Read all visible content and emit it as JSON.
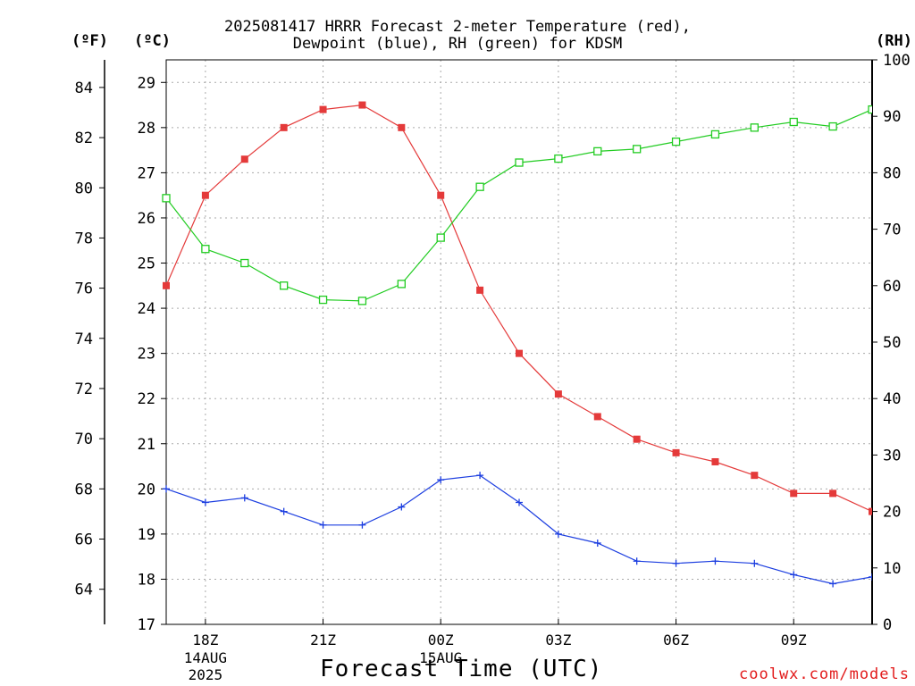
{
  "title": {
    "line1": "2025081417 HRRR Forecast 2-meter Temperature (red),",
    "line2": "Dewpoint (blue), RH (green) for KDSM"
  },
  "units": {
    "fahrenheit": "(ºF)",
    "celsius": "(ºC)",
    "rh": "(RH)"
  },
  "xlabel": "Forecast Time (UTC)",
  "credit": "coolwx.com/models",
  "chart_data": {
    "type": "line",
    "title": "2025081417 HRRR Forecast 2-meter Temperature (red), Dewpoint (blue), RH (green) for KDSM",
    "xlabel": "Forecast Time (UTC)",
    "x_hours": [
      0,
      1,
      2,
      3,
      4,
      5,
      6,
      7,
      8,
      9,
      10,
      11,
      12,
      13,
      14,
      15,
      16,
      17,
      18
    ],
    "xlim": [
      0,
      18
    ],
    "x_ticks": [
      {
        "hour": 1,
        "label": "18Z",
        "sub": [
          "14AUG",
          "2025"
        ]
      },
      {
        "hour": 4,
        "label": "21Z",
        "sub": []
      },
      {
        "hour": 7,
        "label": "00Z",
        "sub": [
          "15AUG"
        ]
      },
      {
        "hour": 10,
        "label": "03Z",
        "sub": []
      },
      {
        "hour": 13,
        "label": "06Z",
        "sub": []
      },
      {
        "hour": 16,
        "label": "09Z",
        "sub": []
      }
    ],
    "celsius_axis": {
      "ylim": [
        17,
        29.5
      ],
      "ticks": [
        17,
        18,
        19,
        20,
        21,
        22,
        23,
        24,
        25,
        26,
        27,
        28,
        29
      ]
    },
    "fahrenheit_axis": {
      "ylim": [
        62.6,
        85.1
      ],
      "ticks": [
        64,
        66,
        68,
        70,
        72,
        74,
        76,
        78,
        80,
        82,
        84
      ]
    },
    "rh_axis": {
      "ylim": [
        0,
        100
      ],
      "ticks": [
        0,
        10,
        20,
        30,
        40,
        50,
        60,
        70,
        80,
        90,
        100
      ]
    },
    "grid": true,
    "series": [
      {
        "name": "Temperature",
        "color": "#e43a3a",
        "axis": "celsius",
        "marker": "filled-square",
        "values": [
          24.5,
          26.5,
          27.3,
          28.0,
          28.4,
          28.5,
          28.0,
          26.5,
          24.4,
          23.0,
          22.1,
          21.6,
          21.1,
          20.8,
          20.6,
          20.3,
          19.9,
          19.9,
          19.5
        ]
      },
      {
        "name": "Dewpoint",
        "color": "#1c3ee0",
        "axis": "celsius",
        "marker": "plus",
        "values": [
          20.0,
          19.7,
          19.8,
          19.5,
          19.2,
          19.2,
          19.6,
          20.2,
          20.3,
          19.7,
          19.0,
          18.8,
          18.4,
          18.35,
          18.4,
          18.35,
          18.1,
          17.9,
          18.05
        ]
      },
      {
        "name": "RH",
        "color": "#22cc22",
        "axis": "rh",
        "marker": "open-square",
        "values": [
          75.5,
          66.5,
          64.0,
          60.0,
          57.5,
          57.3,
          60.3,
          68.5,
          77.5,
          81.8,
          82.5,
          83.8,
          84.2,
          85.5,
          86.8,
          88.0,
          89.0,
          88.2,
          91.2
        ]
      }
    ]
  }
}
